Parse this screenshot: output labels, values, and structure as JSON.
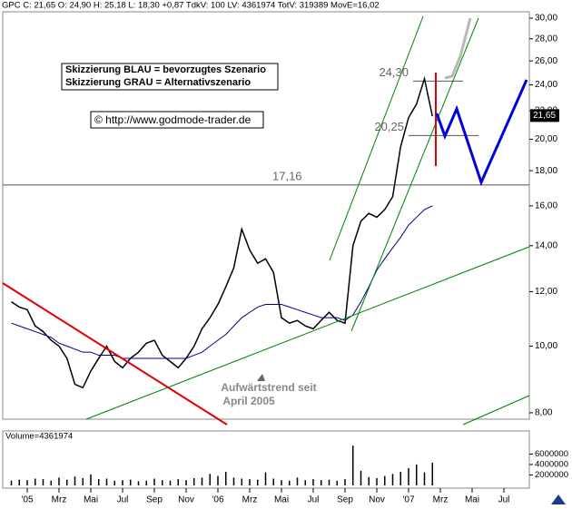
{
  "chart_data": {
    "type": "line",
    "header": "GPC C: 21,65 O: 24,90 H: 25,18 L: 18,30 +0,87 TdkV: 100 LV: 4361974 TotV: 319389 MovE=16,02",
    "legend_lines": [
      "Skizzierung BLAU = bevorzugtes Szenario",
      "Skizzierung GRAU = Alternativszenario"
    ],
    "copyright": "© http://www.godmode-trader.de",
    "annotation": [
      "Aufwärtstrend seit",
      "April 2005"
    ],
    "log_scale": true,
    "ylim": [
      7.83,
      30.65
    ],
    "yticks": [
      {
        "value": 8,
        "label": "8,00"
      },
      {
        "value": 10,
        "label": "10,00"
      },
      {
        "value": 12,
        "label": "12,00"
      },
      {
        "value": 14,
        "label": "14,00"
      },
      {
        "value": 16,
        "label": "16,00"
      },
      {
        "value": 18,
        "label": "18,00"
      },
      {
        "value": 20,
        "label": "20,00"
      },
      {
        "value": 22,
        "label": "22,00"
      },
      {
        "value": 24,
        "label": "24,00"
      },
      {
        "value": 26,
        "label": "26,00"
      },
      {
        "value": 28,
        "label": "28,00"
      },
      {
        "value": 30,
        "label": "30,00"
      }
    ],
    "categories": [
      null,
      null,
      "'05",
      null,
      null,
      null,
      "Mrz",
      null,
      null,
      null,
      "Mai",
      null,
      null,
      null,
      "Jul",
      null,
      null,
      null,
      "Sep",
      null,
      null,
      null,
      "Nov",
      null,
      null,
      null,
      "'06",
      null,
      null,
      null,
      "Mrz",
      null,
      null,
      null,
      "Mai",
      null,
      null,
      null,
      "Jul",
      null,
      null,
      null,
      "Sep",
      null,
      null,
      null,
      "Nov",
      null,
      null,
      null,
      "'07",
      null,
      null,
      null,
      "Mrz",
      null,
      null,
      null,
      "Mai",
      null,
      null,
      null,
      "Jul",
      null,
      null,
      null
    ],
    "series": [
      {
        "color": "#000000",
        "values": [
          11.6,
          11.4,
          11.3,
          10.7,
          10.5,
          10.2,
          10.0,
          9.6,
          8.8,
          8.7,
          9.2,
          9.6,
          10.0,
          9.5,
          9.3,
          9.6,
          9.8,
          10.1,
          10.2,
          9.7,
          9.5,
          9.3,
          9.6,
          10.0,
          10.6,
          11.0,
          11.5,
          12.2,
          13.0,
          14.8,
          13.8,
          13.2,
          13.4,
          12.8,
          11.0,
          10.8,
          10.9,
          10.7,
          10.6,
          10.9,
          11.2,
          10.9,
          10.8,
          14.0,
          15.2,
          15.6,
          15.4,
          15.8,
          16.5,
          19.5,
          21.5,
          22.5,
          24.5,
          21.6,
          null,
          null,
          null,
          null,
          null,
          null,
          null,
          null,
          null,
          null,
          null,
          null
        ]
      },
      {
        "color": "#00008b",
        "values": [
          10.8,
          10.7,
          10.6,
          10.5,
          10.4,
          10.3,
          10.1,
          10.0,
          9.9,
          9.8,
          9.8,
          9.7,
          9.7,
          9.7,
          9.6,
          9.6,
          9.6,
          9.6,
          9.6,
          9.6,
          9.6,
          9.6,
          9.6,
          9.7,
          9.8,
          10.0,
          10.2,
          10.4,
          10.7,
          11.0,
          11.2,
          11.4,
          11.5,
          11.5,
          11.5,
          11.4,
          11.3,
          11.2,
          11.1,
          11.0,
          11.0,
          11.0,
          10.9,
          11.1,
          11.6,
          12.2,
          12.9,
          13.4,
          13.9,
          14.4,
          15.0,
          15.4,
          15.8,
          16.0,
          null,
          null,
          null,
          null,
          null,
          null,
          null,
          null,
          null,
          null,
          null,
          null
        ]
      }
    ],
    "levels": [
      {
        "label": "17,16",
        "value": 17.16
      },
      {
        "label": "24,30",
        "value": 24.3
      },
      {
        "label": "20,25",
        "value": 20.25
      }
    ],
    "last_price": {
      "label": "21,65",
      "value": 21.65
    },
    "volume": {
      "label": "Volume=4361974",
      "ylim": [
        0,
        9900000
      ],
      "yticks": [
        2000000,
        4000000,
        6000000
      ],
      "values": [
        900000,
        1100000,
        1000000,
        1300000,
        1200000,
        900000,
        1500000,
        1100000,
        1700000,
        1400000,
        2100000,
        1200000,
        1300000,
        900000,
        1000000,
        1100000,
        800000,
        900000,
        1300000,
        1000000,
        900000,
        1200000,
        1000000,
        1400000,
        1500000,
        2200000,
        1800000,
        2600000,
        1500000,
        1300000,
        1200000,
        1100000,
        2500000,
        1300000,
        1000000,
        900000,
        1500000,
        1000000,
        1200000,
        1000000,
        1100000,
        900000,
        1200000,
        7600000,
        2800000,
        1600000,
        1400000,
        1800000,
        2200000,
        2600000,
        3300000,
        4000000,
        2500000,
        4361974,
        null,
        null,
        null,
        null,
        null,
        null,
        null,
        null,
        null,
        null,
        null,
        null
      ]
    }
  }
}
